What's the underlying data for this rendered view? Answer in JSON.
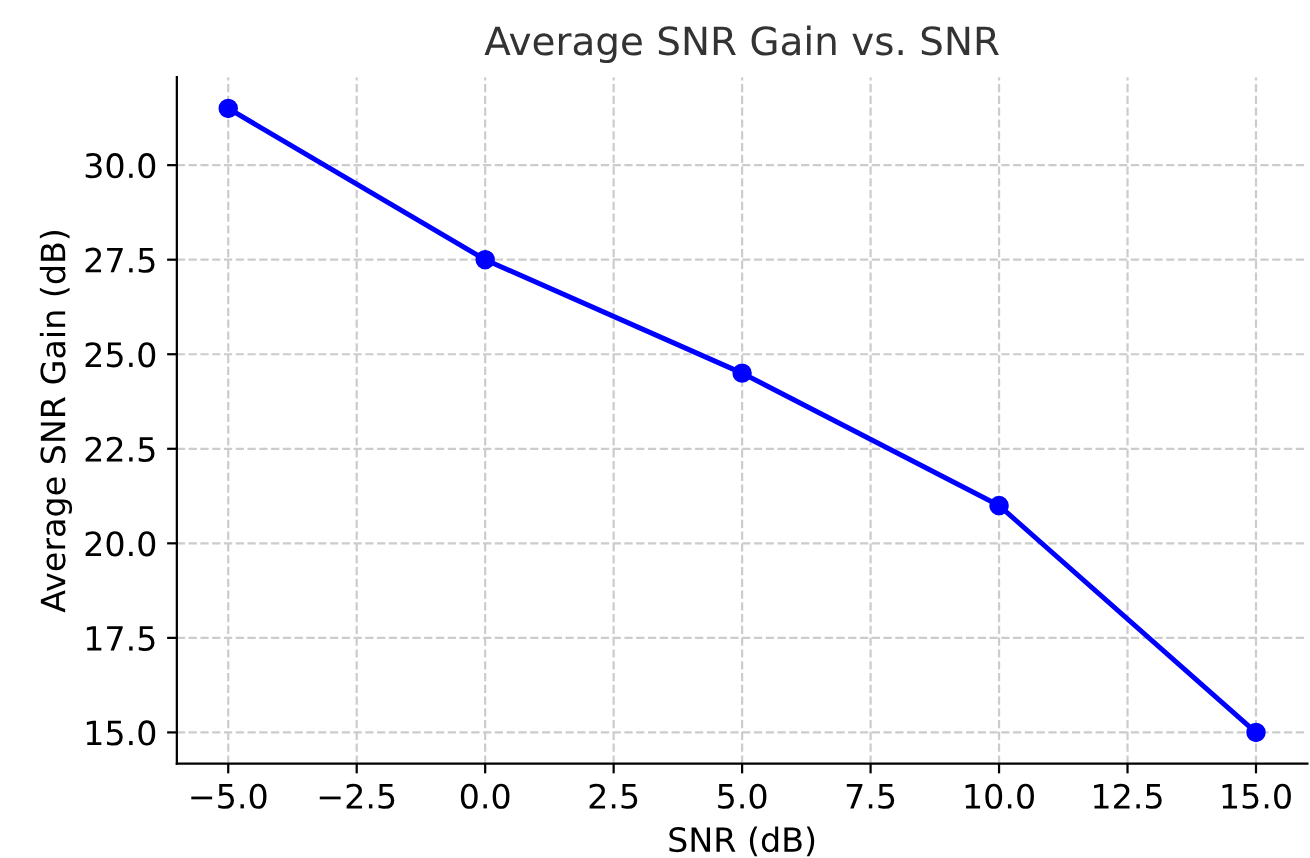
{
  "chart_data": {
    "type": "line",
    "title": "Average SNR Gain vs. SNR",
    "xlabel": "SNR (dB)",
    "ylabel": "Average SNR Gain (dB)",
    "x": [
      -5,
      0,
      5,
      10,
      15
    ],
    "series": [
      {
        "color": "#0000ff",
        "values": [
          31.5,
          27.5,
          24.5,
          21.0,
          15.0
        ]
      }
    ],
    "xlim": [
      -6,
      16
    ],
    "xticks": [
      {
        "value": -5,
        "label": "−5.0"
      },
      {
        "value": -2.5,
        "label": "−2.5"
      },
      {
        "value": 0,
        "label": "0.0"
      },
      {
        "value": 2.5,
        "label": "2.5"
      },
      {
        "value": 5,
        "label": "5.0"
      },
      {
        "value": 7.5,
        "label": "7.5"
      },
      {
        "value": 10,
        "label": "10.0"
      },
      {
        "value": 12.5,
        "label": "12.5"
      },
      {
        "value": 15,
        "label": "15.0"
      }
    ],
    "ylim": [
      14.175,
      32.325
    ],
    "yticks": [
      {
        "value": 15,
        "label": "15.0"
      },
      {
        "value": 17.5,
        "label": "17.5"
      },
      {
        "value": 20,
        "label": "20.0"
      },
      {
        "value": 22.5,
        "label": "22.5"
      },
      {
        "value": 25,
        "label": "25.0"
      },
      {
        "value": 27.5,
        "label": "27.5"
      },
      {
        "value": 30,
        "label": "30.0"
      }
    ],
    "grid": true,
    "marker": "circle",
    "line_style": "solid"
  }
}
